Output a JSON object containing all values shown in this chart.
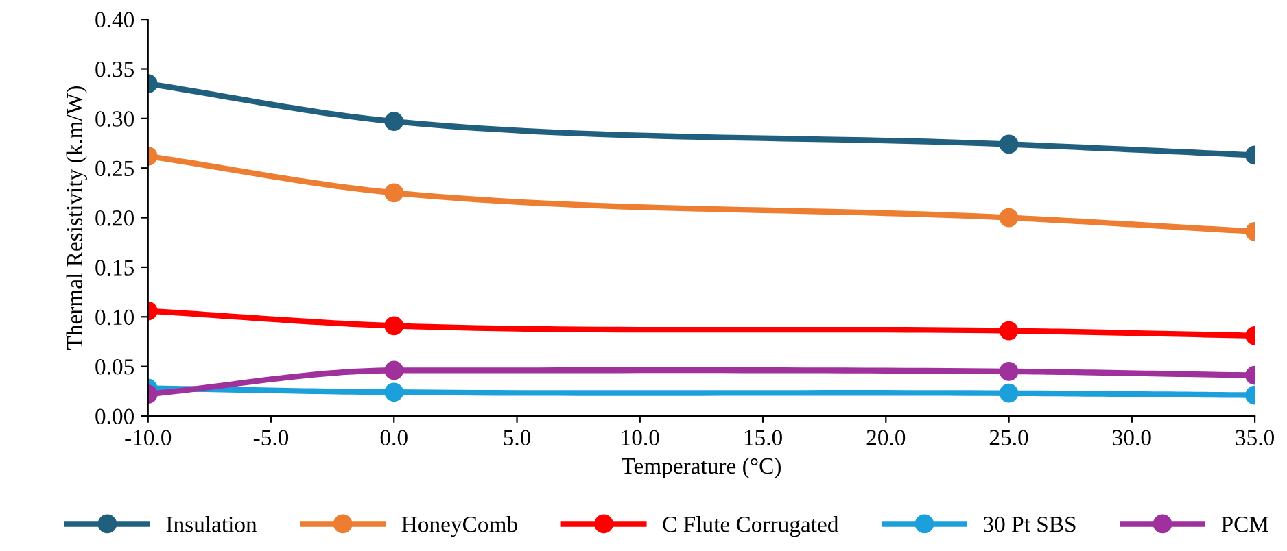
{
  "chart_data": {
    "type": "line",
    "xlabel": "Temperature (°C)",
    "ylabel": "Thermal Resistivity (k.m/W)",
    "x": [
      -10,
      0,
      25,
      35
    ],
    "series": [
      {
        "name": "Insulation",
        "color": "#215f7e",
        "values": [
          0.335,
          0.297,
          0.274,
          0.263
        ]
      },
      {
        "name": "HoneyComb",
        "color": "#ed7d31",
        "values": [
          0.262,
          0.225,
          0.2,
          0.186
        ]
      },
      {
        "name": "C Flute Corrugated",
        "color": "#ff0000",
        "values": [
          0.106,
          0.091,
          0.086,
          0.081
        ]
      },
      {
        "name": "30 Pt SBS",
        "color": "#1ca0dc",
        "values": [
          0.028,
          0.024,
          0.023,
          0.021
        ]
      },
      {
        "name": "PCM",
        "color": "#a0309c",
        "values": [
          0.022,
          0.046,
          0.045,
          0.041
        ]
      }
    ],
    "xlim": [
      -10,
      35
    ],
    "xticks": [
      {
        "value": -10,
        "label": "-10.0"
      },
      {
        "value": -5,
        "label": "-5.0"
      },
      {
        "value": 0,
        "label": "0.0"
      },
      {
        "value": 5,
        "label": "5.0"
      },
      {
        "value": 10,
        "label": "10.0"
      },
      {
        "value": 15,
        "label": "15.0"
      },
      {
        "value": 20,
        "label": "20.0"
      },
      {
        "value": 25,
        "label": "25.0"
      },
      {
        "value": 30,
        "label": "30.0"
      },
      {
        "value": 35,
        "label": "35.0"
      }
    ],
    "ylim": [
      0,
      0.4
    ],
    "yticks": [
      {
        "value": 0,
        "label": "0.00"
      },
      {
        "value": 0.05,
        "label": "0.05"
      },
      {
        "value": 0.1,
        "label": "0.10"
      },
      {
        "value": 0.15,
        "label": "0.15"
      },
      {
        "value": 0.2,
        "label": "0.20"
      },
      {
        "value": 0.25,
        "label": "0.25"
      },
      {
        "value": 0.3,
        "label": "0.30"
      },
      {
        "value": 0.35,
        "label": "0.35"
      },
      {
        "value": 0.4,
        "label": "0.40"
      }
    ],
    "grid": false,
    "legend": "bottom",
    "marker": "circle",
    "line_style": "solid"
  }
}
